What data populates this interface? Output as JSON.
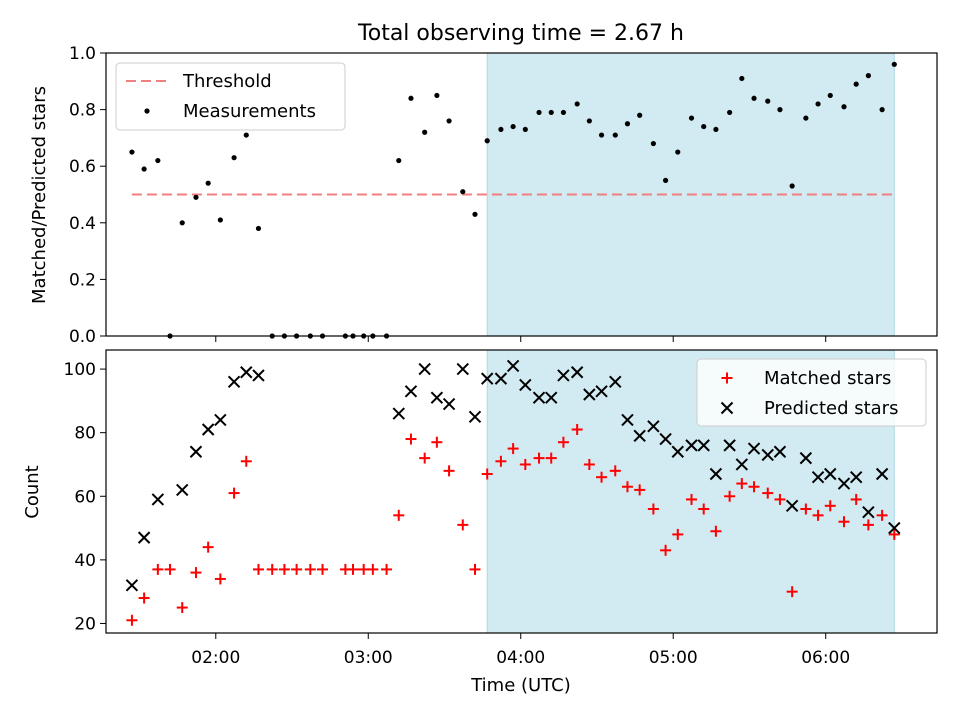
{
  "figure": {
    "title": "Total observing time = 2.67 h",
    "xlabel": "Time (UTC)",
    "x_ticks": [
      {
        "t": 2.0,
        "label": "02:00"
      },
      {
        "t": 3.0,
        "label": "03:00"
      },
      {
        "t": 4.0,
        "label": "04:00"
      },
      {
        "t": 5.0,
        "label": "05:00"
      },
      {
        "t": 6.0,
        "label": "06:00"
      }
    ],
    "colors": {
      "threshold": "#f08080",
      "measurements": "#000000",
      "matched": "#ff0000",
      "predicted": "#000000",
      "shaded_span": "#add8e6"
    }
  },
  "chart_data": [
    {
      "type": "scatter",
      "panel": "top",
      "ylabel": "Matched/Predicted stars",
      "xlim": [
        1.28,
        6.73
      ],
      "ylim": [
        0,
        1.0
      ],
      "yticks": [
        "0.0",
        "0.2",
        "0.4",
        "0.6",
        "0.8",
        "1.0"
      ],
      "shaded_span": [
        3.78,
        6.45
      ],
      "legend": {
        "placement": "upper-left",
        "entries": [
          "Threshold",
          "Measurements"
        ]
      },
      "threshold": {
        "name": "Threshold",
        "value": 0.5,
        "x_range": [
          1.45,
          6.45
        ]
      },
      "series": [
        {
          "name": "Measurements",
          "x": [
            1.45,
            1.53,
            1.62,
            1.7,
            1.78,
            1.87,
            1.95,
            2.03,
            2.12,
            2.2,
            2.28,
            2.37,
            2.45,
            2.53,
            2.62,
            2.7,
            2.85,
            2.9,
            2.97,
            3.03,
            3.12,
            3.2,
            3.28,
            3.37,
            3.45,
            3.53,
            3.62,
            3.7,
            3.78,
            3.87,
            3.95,
            4.03,
            4.12,
            4.2,
            4.28,
            4.37,
            4.45,
            4.53,
            4.62,
            4.7,
            4.78,
            4.87,
            4.95,
            5.03,
            5.12,
            5.2,
            5.28,
            5.37,
            5.45,
            5.53,
            5.62,
            5.7,
            5.78,
            5.87,
            5.95,
            6.03,
            6.12,
            6.2,
            6.28,
            6.37,
            6.45
          ],
          "y": [
            0.65,
            0.59,
            0.62,
            0.0,
            0.4,
            0.49,
            0.54,
            0.41,
            0.63,
            0.71,
            0.38,
            0.0,
            0.0,
            0.0,
            0.0,
            0.0,
            0.0,
            0.0,
            0.0,
            0.0,
            0.0,
            0.62,
            0.84,
            0.72,
            0.85,
            0.76,
            0.51,
            0.43,
            0.69,
            0.73,
            0.74,
            0.73,
            0.79,
            0.79,
            0.79,
            0.82,
            0.76,
            0.71,
            0.71,
            0.75,
            0.78,
            0.68,
            0.55,
            0.65,
            0.77,
            0.74,
            0.73,
            0.79,
            0.91,
            0.84,
            0.83,
            0.8,
            0.53,
            0.77,
            0.82,
            0.85,
            0.81,
            0.89,
            0.92,
            0.8,
            0.96
          ]
        }
      ]
    },
    {
      "type": "scatter",
      "panel": "bottom",
      "ylabel": "Count",
      "xlim": [
        1.28,
        6.73
      ],
      "ylim": [
        17,
        106
      ],
      "yticks": [
        "20",
        "40",
        "60",
        "80",
        "100"
      ],
      "shaded_span": [
        3.78,
        6.45
      ],
      "legend": {
        "placement": "upper-right",
        "entries": [
          "Matched stars",
          "Predicted stars"
        ]
      },
      "series": [
        {
          "name": "Matched stars",
          "marker": "+",
          "x": [
            1.45,
            1.53,
            1.62,
            1.7,
            1.78,
            1.87,
            1.95,
            2.03,
            2.12,
            2.2,
            2.28,
            2.37,
            2.45,
            2.53,
            2.62,
            2.7,
            2.85,
            2.9,
            2.97,
            3.03,
            3.12,
            3.2,
            3.28,
            3.37,
            3.45,
            3.53,
            3.62,
            3.7,
            3.78,
            3.87,
            3.95,
            4.03,
            4.12,
            4.2,
            4.28,
            4.37,
            4.45,
            4.53,
            4.62,
            4.7,
            4.78,
            4.87,
            4.95,
            5.03,
            5.12,
            5.2,
            5.28,
            5.37,
            5.45,
            5.53,
            5.62,
            5.7,
            5.78,
            5.87,
            5.95,
            6.03,
            6.12,
            6.2,
            6.28,
            6.37,
            6.45
          ],
          "y": [
            21,
            28,
            37,
            37,
            25,
            36,
            44,
            34,
            61,
            71,
            37,
            37,
            37,
            37,
            37,
            37,
            37,
            37,
            37,
            37,
            37,
            54,
            78,
            72,
            77,
            68,
            51,
            37,
            67,
            71,
            75,
            70,
            72,
            72,
            77,
            81,
            70,
            66,
            68,
            63,
            62,
            56,
            43,
            48,
            59,
            56,
            49,
            60,
            64,
            63,
            61,
            59,
            30,
            56,
            54,
            57,
            52,
            59,
            51,
            54,
            48
          ]
        },
        {
          "name": "Predicted stars",
          "marker": "x",
          "x": [
            1.45,
            1.53,
            1.62,
            1.78,
            1.87,
            1.95,
            2.03,
            2.12,
            2.2,
            2.28,
            3.2,
            3.28,
            3.37,
            3.45,
            3.53,
            3.62,
            3.7,
            3.78,
            3.87,
            3.95,
            4.03,
            4.12,
            4.2,
            4.28,
            4.37,
            4.45,
            4.53,
            4.62,
            4.7,
            4.78,
            4.87,
            4.95,
            5.03,
            5.12,
            5.2,
            5.28,
            5.37,
            5.45,
            5.53,
            5.62,
            5.7,
            5.78,
            5.87,
            5.95,
            6.03,
            6.12,
            6.2,
            6.28,
            6.37,
            6.45
          ],
          "y": [
            32,
            47,
            59,
            62,
            74,
            81,
            84,
            96,
            99,
            98,
            86,
            93,
            100,
            91,
            89,
            100,
            85,
            97,
            97,
            101,
            95,
            91,
            91,
            98,
            99,
            92,
            93,
            96,
            84,
            79,
            82,
            78,
            74,
            76,
            76,
            67,
            76,
            70,
            75,
            73,
            74,
            57,
            72,
            66,
            67,
            64,
            66,
            55,
            67,
            50
          ]
        }
      ]
    }
  ]
}
